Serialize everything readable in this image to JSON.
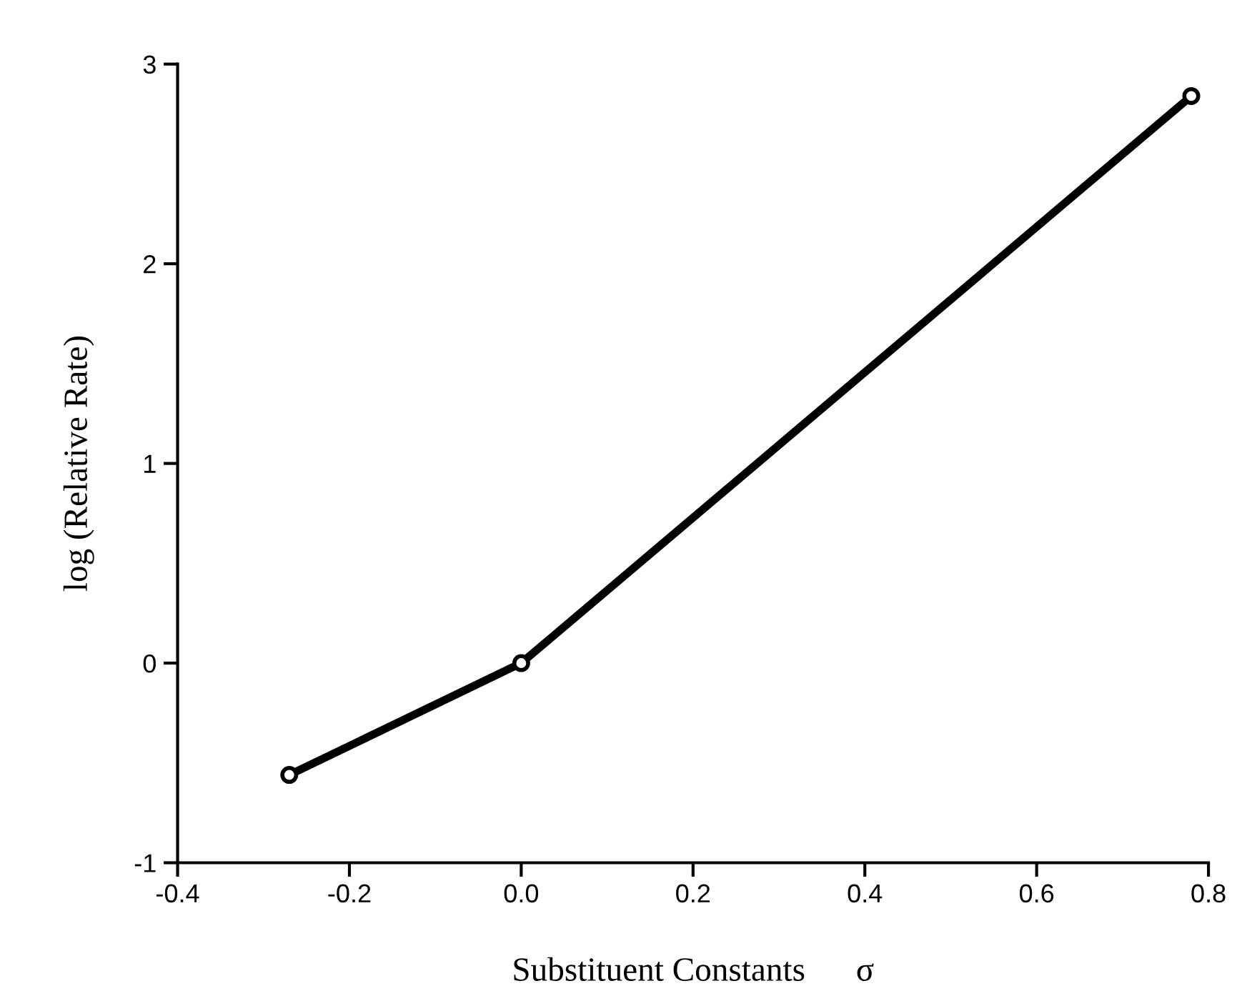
{
  "chart_data": {
    "type": "line",
    "xlabel": "Substituent Constants      σ",
    "ylabel": "log (Relative Rate)",
    "x": [
      -0.27,
      0.0,
      0.78
    ],
    "series": [
      {
        "color": "#000000",
        "values": [
          -0.56,
          0.0,
          2.84
        ]
      }
    ],
    "xlim": [
      -0.4,
      0.8
    ],
    "xticks": [
      {
        "value": -0.4,
        "label": "-0.4"
      },
      {
        "value": -0.2,
        "label": "-0.2"
      },
      {
        "value": 0.0,
        "label": "0.0"
      },
      {
        "value": 0.2,
        "label": "0.2"
      },
      {
        "value": 0.4,
        "label": "0.4"
      },
      {
        "value": 0.6,
        "label": "0.6"
      },
      {
        "value": 0.8,
        "label": "0.8"
      }
    ],
    "ylim": [
      -1,
      3
    ],
    "yticks": [
      {
        "value": -1,
        "label": "-1"
      },
      0,
      1,
      2,
      3
    ],
    "marker": "circle",
    "line_style": "solid",
    "grid": false,
    "legend": false
  }
}
